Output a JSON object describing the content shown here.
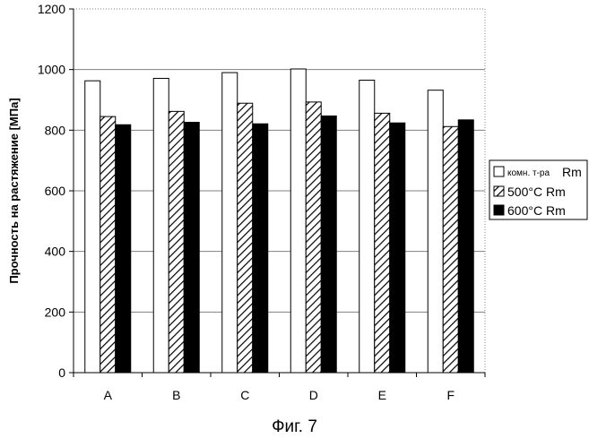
{
  "chart_data": {
    "type": "bar",
    "categories": [
      "A",
      "B",
      "C",
      "D",
      "E",
      "F"
    ],
    "series": [
      {
        "name": "комн. т-ра Rm",
        "values": [
          963,
          971,
          990,
          1002,
          965,
          932
        ],
        "fill": "white"
      },
      {
        "name": "500°C Rm",
        "values": [
          845,
          862,
          889,
          893,
          856,
          812
        ],
        "fill": "hatch"
      },
      {
        "name": "600°C Rm",
        "values": [
          818,
          826,
          821,
          847,
          824,
          834
        ],
        "fill": "black"
      }
    ],
    "ylabel": "Прочность на растяжение [МПа]",
    "ylim": [
      0,
      1200
    ],
    "yticks": [
      0,
      200,
      400,
      600,
      800,
      1000,
      1200
    ],
    "grid": true,
    "legend": "right",
    "legend_parts": [
      {
        "small": "комн. т-ра",
        "big": "Rm"
      },
      {
        "small": "",
        "big": "500°C Rm"
      },
      {
        "small": "",
        "big": "600°C Rm"
      }
    ]
  },
  "caption": "Фиг. 7"
}
